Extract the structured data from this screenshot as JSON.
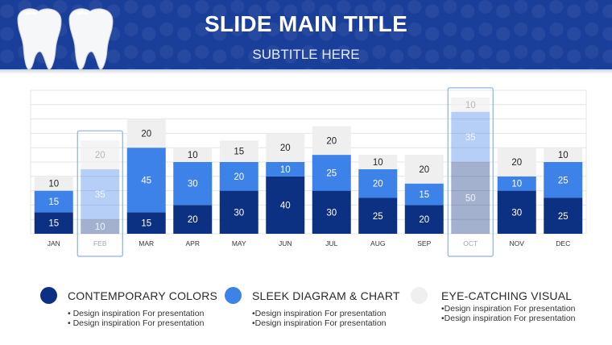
{
  "header": {
    "title": "SLIDE MAIN TITLE",
    "subtitle": "SUBTITLE HERE",
    "background_color": "#1a3f9a"
  },
  "chart_data": {
    "type": "bar",
    "stacked": true,
    "categories": [
      "JAN",
      "FEB",
      "MAR",
      "APR",
      "MAY",
      "JUN",
      "JUL",
      "AUG",
      "SEP",
      "OCT",
      "NOV",
      "DEC"
    ],
    "series": [
      {
        "color": "#0d3182",
        "values": [
          15,
          10,
          15,
          20,
          30,
          40,
          30,
          25,
          20,
          50,
          30,
          25
        ]
      },
      {
        "color": "#3d82e8",
        "values": [
          15,
          35,
          45,
          30,
          20,
          10,
          25,
          20,
          15,
          35,
          10,
          25
        ]
      },
      {
        "color": "#efefef",
        "values": [
          10,
          20,
          20,
          10,
          15,
          20,
          20,
          10,
          20,
          10,
          20,
          10
        ]
      }
    ],
    "highlighted": [
      "FEB",
      "OCT"
    ],
    "ylim": [
      0,
      100
    ],
    "grid": true,
    "legend": "bottom"
  },
  "legend": [
    {
      "label": "CONTEMPORARY COLORS",
      "color": "#0d3182",
      "bullets": [
        "• Design inspiration For presentation",
        "• Design inspiration For presentation"
      ]
    },
    {
      "label": "SLEEK DIAGRAM & CHART",
      "color": "#3d82e8",
      "bullets": [
        "•Design inspiration For presentation",
        "•Design inspiration For presentation"
      ]
    },
    {
      "label": "EYE-CATCHING VISUAL",
      "color": "#efefef",
      "bullets": [
        "•Design inspiration For presentation",
        "•Design inspiration For presentation"
      ]
    }
  ]
}
